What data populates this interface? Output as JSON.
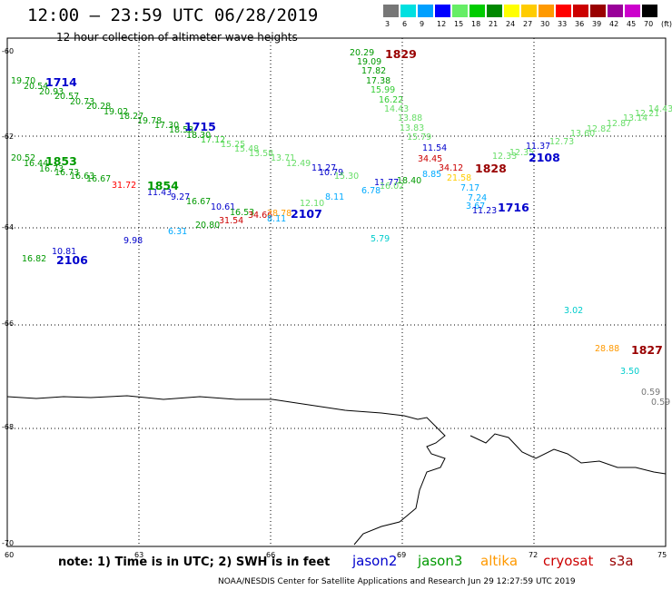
{
  "header": {
    "title": "12:00 – 23:59 UTC 06/28/2019",
    "subtitle": "12 hour collection of altimeter wave heights"
  },
  "legend": {
    "labels": [
      "3",
      "6",
      "9",
      "12",
      "15",
      "18",
      "21",
      "24",
      "27",
      "30",
      "33",
      "36",
      "39",
      "42",
      "45",
      "70",
      "(ft)"
    ],
    "colors": [
      "#777777",
      "#00e0e0",
      "#00a0ff",
      "#0000ff",
      "#66ee66",
      "#00cc00",
      "#008800",
      "#ffff00",
      "#ffcc00",
      "#ff9900",
      "#ff0000",
      "#cc0000",
      "#990000",
      "#990099",
      "#cc00cc",
      "#000000"
    ]
  },
  "axes": {
    "lat_labels": [
      "-60",
      "-62",
      "-64",
      "-66",
      "-68",
      "-70"
    ],
    "lon_labels": [
      "60",
      "63",
      "66",
      "69",
      "72",
      "75"
    ]
  },
  "colors": {
    "jason2": "#0000cc",
    "jason3": "#009900",
    "altika": "#ff9900",
    "cryosat": "#cc0000",
    "s3a": "#990000",
    "coast": "#000000",
    "grid": "#000000"
  },
  "map_data": {
    "values": [
      {
        "text": "19.70",
        "color": "#009900"
      },
      {
        "text": "20.54",
        "color": "#009900"
      },
      {
        "text": "20.93",
        "color": "#009900"
      },
      {
        "text": "20.57",
        "color": "#009900"
      },
      {
        "text": "20.73",
        "color": "#009900"
      },
      {
        "text": "20.28",
        "color": "#009900"
      },
      {
        "text": "19.02",
        "color": "#009900"
      },
      {
        "text": "18.27",
        "color": "#009900"
      },
      {
        "text": "19.78",
        "color": "#009900"
      },
      {
        "text": "17.30",
        "color": "#009900"
      },
      {
        "text": "18.58",
        "color": "#009900"
      },
      {
        "text": "18.30",
        "color": "#009900"
      },
      {
        "text": "17.12",
        "color": "#33cc33"
      },
      {
        "text": "15.25",
        "color": "#66dd66"
      },
      {
        "text": "15.48",
        "color": "#66dd66"
      },
      {
        "text": "13.58",
        "color": "#66dd66"
      },
      {
        "text": "13.71",
        "color": "#66dd66"
      },
      {
        "text": "12.49",
        "color": "#66dd66"
      },
      {
        "text": "20.52",
        "color": "#009900"
      },
      {
        "text": "16.44",
        "color": "#009900"
      },
      {
        "text": "16.73",
        "color": "#009900"
      },
      {
        "text": "16.73",
        "color": "#009900"
      },
      {
        "text": "16.63",
        "color": "#009900"
      },
      {
        "text": "16.67",
        "color": "#009900"
      },
      {
        "text": "31.72",
        "color": "#ff0000"
      },
      {
        "text": "11.43",
        "color": "#0000cc"
      },
      {
        "text": "9.27",
        "color": "#0000cc"
      },
      {
        "text": "16.67",
        "color": "#009900"
      },
      {
        "text": "10.61",
        "color": "#0000cc"
      },
      {
        "text": "16.53",
        "color": "#009900"
      },
      {
        "text": "34.66",
        "color": "#cc0000"
      },
      {
        "text": "28.78",
        "color": "#ff9900"
      },
      {
        "text": "31.54",
        "color": "#cc0000"
      },
      {
        "text": "20.80",
        "color": "#009900"
      },
      {
        "text": "6.31",
        "color": "#00aaff"
      },
      {
        "text": "8.11",
        "color": "#00aaff"
      },
      {
        "text": "12.10",
        "color": "#66dd66"
      },
      {
        "text": "8.11",
        "color": "#00aaff"
      },
      {
        "text": "11.27",
        "color": "#0000cc"
      },
      {
        "text": "10.79",
        "color": "#0000cc"
      },
      {
        "text": "15.30",
        "color": "#66dd66"
      },
      {
        "text": "11.77",
        "color": "#0000cc"
      },
      {
        "text": "6.78",
        "color": "#00aaff"
      },
      {
        "text": "16.02",
        "color": "#66dd66"
      },
      {
        "text": "18.40",
        "color": "#009900"
      },
      {
        "text": "8.85",
        "color": "#00aaff"
      },
      {
        "text": "5.79",
        "color": "#00cccc"
      },
      {
        "text": "9.98",
        "color": "#0000cc"
      },
      {
        "text": "10.81",
        "color": "#0000cc"
      },
      {
        "text": "16.82",
        "color": "#009900"
      },
      {
        "text": "20.29",
        "color": "#009900"
      },
      {
        "text": "19.09",
        "color": "#009900"
      },
      {
        "text": "17.82",
        "color": "#009900"
      },
      {
        "text": "17.38",
        "color": "#009900"
      },
      {
        "text": "15.99",
        "color": "#33cc33"
      },
      {
        "text": "16.22",
        "color": "#33cc33"
      },
      {
        "text": "14.43",
        "color": "#66dd66"
      },
      {
        "text": "13.88",
        "color": "#66dd66"
      },
      {
        "text": "13.83",
        "color": "#66dd66"
      },
      {
        "text": "15.79",
        "color": "#66dd66"
      },
      {
        "text": "11.54",
        "color": "#0000cc"
      },
      {
        "text": "34.45",
        "color": "#cc0000"
      },
      {
        "text": "34.12",
        "color": "#cc0000"
      },
      {
        "text": "21.58",
        "color": "#ffcc00"
      },
      {
        "text": "7.17",
        "color": "#00aaff"
      },
      {
        "text": "7.24",
        "color": "#00aaff"
      },
      {
        "text": "3.67",
        "color": "#00aaff"
      },
      {
        "text": "11.23",
        "color": "#0000cc"
      },
      {
        "text": "12.33",
        "color": "#66dd66"
      },
      {
        "text": "12.35",
        "color": "#66dd66"
      },
      {
        "text": "11.37",
        "color": "#0000cc"
      },
      {
        "text": "12.73",
        "color": "#66dd66"
      },
      {
        "text": "13.60",
        "color": "#66dd66"
      },
      {
        "text": "12.82",
        "color": "#66dd66"
      },
      {
        "text": "12.87",
        "color": "#66dd66"
      },
      {
        "text": "13.14",
        "color": "#66dd66"
      },
      {
        "text": "12.21",
        "color": "#66dd66"
      },
      {
        "text": "14.43",
        "color": "#66dd66"
      },
      {
        "text": "3.02",
        "color": "#00cccc"
      },
      {
        "text": "28.88",
        "color": "#ff9900"
      },
      {
        "text": "3.50",
        "color": "#00cccc"
      },
      {
        "text": "0.59",
        "color": "#777777"
      },
      {
        "text": "0.59",
        "color": "#777777"
      }
    ],
    "times": [
      {
        "text": "1714",
        "color": "#0000cc"
      },
      {
        "text": "1715",
        "color": "#0000cc"
      },
      {
        "text": "1853",
        "color": "#009900"
      },
      {
        "text": "1854",
        "color": "#009900"
      },
      {
        "text": "2107",
        "color": "#0000cc"
      },
      {
        "text": "2106",
        "color": "#0000cc"
      },
      {
        "text": "1829",
        "color": "#990000"
      },
      {
        "text": "1828",
        "color": "#990000"
      },
      {
        "text": "2108",
        "color": "#0000cc"
      },
      {
        "text": "1716",
        "color": "#0000cc"
      },
      {
        "text": "1827",
        "color": "#990000"
      }
    ]
  },
  "footer": {
    "note": "note: 1) Time is in UTC; 2) SWH is in feet",
    "satellites": [
      "jason2",
      "jason3",
      "altika",
      "cryosat",
      "s3a"
    ],
    "credit": "NOAA/NESDIS Center for Satellite Applications and Research    Jun 29 12:27:59 UTC 2019"
  }
}
